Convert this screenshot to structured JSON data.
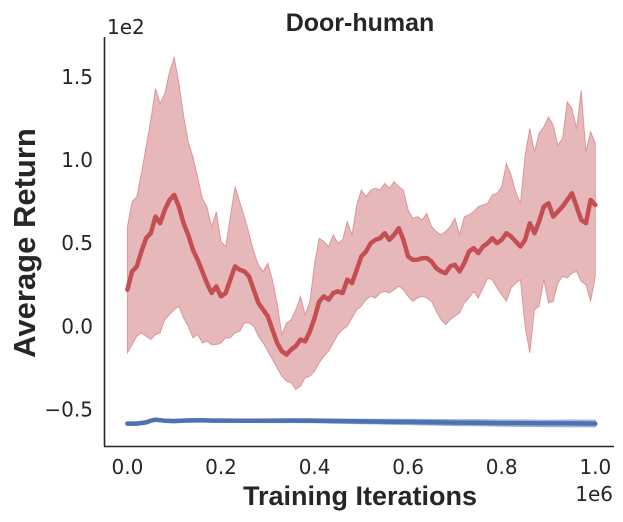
{
  "chart_data": {
    "type": "line",
    "title": "Door-human",
    "xlabel": "Training Iterations",
    "ylabel": "Average Return",
    "x_offset_label": "1e6",
    "y_offset_label": "1e2",
    "xlim": [
      -0.05,
      1.04
    ],
    "ylim": [
      -0.72,
      1.74
    ],
    "x_ticks": [
      0.0,
      0.2,
      0.4,
      0.6,
      0.8,
      1.0
    ],
    "x_tick_labels": [
      "0.0",
      "0.2",
      "0.4",
      "0.6",
      "0.8",
      "1.0"
    ],
    "y_ticks": [
      -0.5,
      0.0,
      0.5,
      1.0,
      1.5
    ],
    "y_tick_labels": [
      "−0.5",
      "0.0",
      "0.5",
      "1.0",
      "1.5"
    ],
    "grid": false,
    "legend": "none",
    "series": [
      {
        "color": "#c44e52",
        "x": [
          0.0,
          0.01,
          0.02,
          0.03,
          0.04,
          0.05,
          0.06,
          0.07,
          0.08,
          0.09,
          0.1,
          0.11,
          0.12,
          0.13,
          0.14,
          0.15,
          0.16,
          0.17,
          0.18,
          0.19,
          0.2,
          0.21,
          0.22,
          0.23,
          0.24,
          0.25,
          0.26,
          0.27,
          0.28,
          0.29,
          0.3,
          0.31,
          0.32,
          0.33,
          0.34,
          0.35,
          0.36,
          0.37,
          0.38,
          0.39,
          0.4,
          0.41,
          0.42,
          0.43,
          0.44,
          0.45,
          0.46,
          0.47,
          0.48,
          0.49,
          0.5,
          0.51,
          0.52,
          0.53,
          0.54,
          0.55,
          0.56,
          0.57,
          0.58,
          0.59,
          0.6,
          0.61,
          0.62,
          0.63,
          0.64,
          0.65,
          0.66,
          0.67,
          0.68,
          0.69,
          0.7,
          0.71,
          0.72,
          0.73,
          0.74,
          0.75,
          0.76,
          0.77,
          0.78,
          0.79,
          0.8,
          0.81,
          0.82,
          0.83,
          0.84,
          0.85,
          0.86,
          0.87,
          0.88,
          0.89,
          0.9,
          0.91,
          0.92,
          0.93,
          0.94,
          0.95,
          0.96,
          0.97,
          0.98,
          0.99,
          1.0
        ],
        "y": [
          0.22,
          0.33,
          0.36,
          0.45,
          0.53,
          0.56,
          0.66,
          0.62,
          0.7,
          0.76,
          0.79,
          0.72,
          0.62,
          0.55,
          0.46,
          0.4,
          0.33,
          0.26,
          0.2,
          0.24,
          0.18,
          0.2,
          0.28,
          0.36,
          0.34,
          0.33,
          0.3,
          0.22,
          0.14,
          0.1,
          0.06,
          -0.02,
          -0.1,
          -0.15,
          -0.17,
          -0.14,
          -0.12,
          -0.08,
          -0.09,
          -0.03,
          0.05,
          0.15,
          0.18,
          0.16,
          0.2,
          0.21,
          0.2,
          0.28,
          0.26,
          0.34,
          0.42,
          0.45,
          0.5,
          0.52,
          0.53,
          0.56,
          0.52,
          0.55,
          0.59,
          0.52,
          0.42,
          0.4,
          0.4,
          0.41,
          0.41,
          0.39,
          0.35,
          0.33,
          0.32,
          0.36,
          0.37,
          0.33,
          0.38,
          0.45,
          0.47,
          0.44,
          0.48,
          0.5,
          0.53,
          0.5,
          0.52,
          0.56,
          0.54,
          0.51,
          0.48,
          0.52,
          0.62,
          0.56,
          0.63,
          0.72,
          0.74,
          0.66,
          0.69,
          0.72,
          0.76,
          0.8,
          0.72,
          0.64,
          0.62,
          0.76,
          0.73
        ],
        "y_lower": [
          -0.16,
          -0.11,
          -0.06,
          -0.04,
          -0.06,
          -0.08,
          -0.05,
          -0.04,
          0.04,
          0.07,
          0.1,
          0.12,
          0.05,
          0.0,
          -0.07,
          -0.05,
          -0.1,
          -0.09,
          -0.11,
          -0.11,
          -0.1,
          -0.07,
          -0.07,
          -0.04,
          -0.03,
          0.02,
          0.02,
          0.0,
          -0.06,
          -0.1,
          -0.15,
          -0.2,
          -0.25,
          -0.3,
          -0.33,
          -0.34,
          -0.38,
          -0.36,
          -0.31,
          -0.3,
          -0.27,
          -0.22,
          -0.18,
          -0.15,
          -0.1,
          -0.05,
          -0.02,
          0.0,
          0.05,
          0.1,
          0.12,
          0.16,
          0.18,
          0.17,
          0.2,
          0.21,
          0.2,
          0.22,
          0.24,
          0.22,
          0.18,
          0.15,
          0.17,
          0.18,
          0.17,
          0.15,
          0.09,
          0.04,
          0.01,
          0.04,
          0.06,
          0.08,
          0.14,
          0.17,
          0.21,
          0.17,
          0.23,
          0.29,
          0.28,
          0.23,
          0.19,
          0.15,
          0.23,
          0.26,
          0.28,
          0.0,
          -0.16,
          0.1,
          0.12,
          0.28,
          0.14,
          0.15,
          0.26,
          0.3,
          0.29,
          0.32,
          0.33,
          0.27,
          0.25,
          0.15,
          0.3
        ],
        "y_upper": [
          0.6,
          0.75,
          0.78,
          0.92,
          1.08,
          1.24,
          1.43,
          1.34,
          1.4,
          1.53,
          1.62,
          1.46,
          1.27,
          1.11,
          1.02,
          0.9,
          0.77,
          0.72,
          0.6,
          0.69,
          0.51,
          0.48,
          0.66,
          0.84,
          0.75,
          0.66,
          0.56,
          0.45,
          0.37,
          0.33,
          0.38,
          0.28,
          0.14,
          -0.05,
          0.02,
          0.04,
          0.1,
          0.18,
          0.07,
          0.15,
          0.38,
          0.53,
          0.51,
          0.48,
          0.55,
          0.5,
          0.52,
          0.63,
          0.55,
          0.73,
          0.82,
          0.78,
          0.82,
          0.83,
          0.82,
          0.86,
          0.83,
          0.87,
          0.84,
          0.82,
          0.7,
          0.65,
          0.66,
          0.64,
          0.68,
          0.6,
          0.57,
          0.55,
          0.57,
          0.6,
          0.65,
          0.55,
          0.66,
          0.67,
          0.69,
          0.72,
          0.73,
          0.74,
          0.79,
          0.8,
          0.84,
          0.98,
          0.91,
          0.81,
          0.74,
          1.03,
          1.19,
          1.05,
          1.16,
          1.2,
          1.26,
          1.21,
          1.09,
          1.13,
          1.35,
          1.31,
          1.19,
          1.42,
          1.05,
          1.17,
          1.1
        ]
      },
      {
        "color": "#4c72b0",
        "x": [
          0.0,
          0.02,
          0.04,
          0.05,
          0.06,
          0.08,
          0.1,
          0.12,
          0.14,
          0.16,
          0.18,
          0.2,
          0.25,
          0.3,
          0.35,
          0.4,
          0.45,
          0.5,
          0.55,
          0.6,
          0.65,
          0.7,
          0.75,
          0.8,
          0.85,
          0.9,
          0.95,
          1.0
        ],
        "y": [
          -0.585,
          -0.585,
          -0.578,
          -0.568,
          -0.562,
          -0.568,
          -0.57,
          -0.567,
          -0.566,
          -0.565,
          -0.567,
          -0.567,
          -0.568,
          -0.568,
          -0.567,
          -0.568,
          -0.57,
          -0.572,
          -0.574,
          -0.575,
          -0.577,
          -0.579,
          -0.58,
          -0.582,
          -0.583,
          -0.584,
          -0.584,
          -0.585
        ],
        "y_lower": [
          -0.595,
          -0.595,
          -0.588,
          -0.578,
          -0.572,
          -0.578,
          -0.58,
          -0.577,
          -0.576,
          -0.575,
          -0.577,
          -0.577,
          -0.578,
          -0.579,
          -0.579,
          -0.58,
          -0.583,
          -0.586,
          -0.589,
          -0.591,
          -0.594,
          -0.597,
          -0.599,
          -0.601,
          -0.603,
          -0.604,
          -0.605,
          -0.606
        ],
        "y_upper": [
          -0.575,
          -0.575,
          -0.568,
          -0.558,
          -0.552,
          -0.558,
          -0.56,
          -0.557,
          -0.556,
          -0.555,
          -0.557,
          -0.557,
          -0.558,
          -0.557,
          -0.555,
          -0.556,
          -0.557,
          -0.558,
          -0.559,
          -0.559,
          -0.56,
          -0.561,
          -0.561,
          -0.563,
          -0.563,
          -0.564,
          -0.563,
          -0.564
        ]
      }
    ]
  }
}
